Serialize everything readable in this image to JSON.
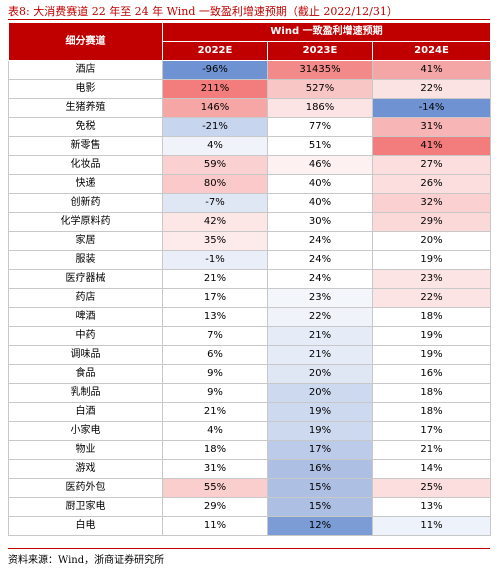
{
  "title": "表8:  大消费赛道 22 年至 24 年 Wind 一致盈利增速预期（截止 2022/12/31）",
  "table": {
    "header": {
      "first": "细分赛道",
      "group": "Wind 一致盈利增速预期",
      "years": [
        "2022E",
        "2023E",
        "2024E"
      ]
    },
    "rows": [
      {
        "label": "酒店",
        "values": [
          "-96%",
          "31435%",
          "41%"
        ],
        "colors": [
          "#6f93d2",
          "#f38a8a",
          "#f4a5a5"
        ]
      },
      {
        "label": "电影",
        "values": [
          "211%",
          "527%",
          "22%"
        ],
        "colors": [
          "#f37c7c",
          "#f9c6c6",
          "#fbe3e3"
        ]
      },
      {
        "label": "生猪养殖",
        "values": [
          "146%",
          "186%",
          "-14%"
        ],
        "colors": [
          "#f7a6a6",
          "#fde4e4",
          "#6f93d2"
        ]
      },
      {
        "label": "免税",
        "values": [
          "-21%",
          "77%",
          "31%"
        ],
        "colors": [
          "#c8d5ee",
          "#ffffff",
          "#f7b5b5"
        ]
      },
      {
        "label": "新零售",
        "values": [
          "4%",
          "51%",
          "41%"
        ],
        "colors": [
          "#f0f3fa",
          "#ffffff",
          "#f37c7c"
        ]
      },
      {
        "label": "化妆品",
        "values": [
          "59%",
          "46%",
          "27%"
        ],
        "colors": [
          "#fbd0d0",
          "#fdf1f1",
          "#fcdede"
        ]
      },
      {
        "label": "快递",
        "values": [
          "80%",
          "40%",
          "26%"
        ],
        "colors": [
          "#fbc9c9",
          "#ffffff",
          "#fcdede"
        ]
      },
      {
        "label": "创新药",
        "values": [
          "-7%",
          "40%",
          "32%"
        ],
        "colors": [
          "#dfe6f4",
          "#ffffff",
          "#fbd0d0"
        ]
      },
      {
        "label": "化学原料药",
        "values": [
          "42%",
          "30%",
          "29%"
        ],
        "colors": [
          "#fde6e6",
          "#ffffff",
          "#fcd9d9"
        ]
      },
      {
        "label": "家居",
        "values": [
          "35%",
          "24%",
          "20%"
        ],
        "colors": [
          "#fdeaea",
          "#ffffff",
          "#ffffff"
        ]
      },
      {
        "label": "服装",
        "values": [
          "-1%",
          "24%",
          "19%"
        ],
        "colors": [
          "#e9eef8",
          "#ffffff",
          "#ffffff"
        ]
      },
      {
        "label": "医疗器械",
        "values": [
          "21%",
          "24%",
          "23%"
        ],
        "colors": [
          "#ffffff",
          "#ffffff",
          "#fde4e4"
        ]
      },
      {
        "label": "药店",
        "values": [
          "17%",
          "23%",
          "22%"
        ],
        "colors": [
          "#ffffff",
          "#f3f6fb",
          "#fde4e4"
        ]
      },
      {
        "label": "啤酒",
        "values": [
          "13%",
          "22%",
          "18%"
        ],
        "colors": [
          "#ffffff",
          "#f0f3fa",
          "#ffffff"
        ]
      },
      {
        "label": "中药",
        "values": [
          "7%",
          "21%",
          "19%"
        ],
        "colors": [
          "#ffffff",
          "#e6ecf7",
          "#ffffff"
        ]
      },
      {
        "label": "调味品",
        "values": [
          "6%",
          "21%",
          "19%"
        ],
        "colors": [
          "#ffffff",
          "#e6ecf7",
          "#ffffff"
        ]
      },
      {
        "label": "食品",
        "values": [
          "9%",
          "20%",
          "16%"
        ],
        "colors": [
          "#ffffff",
          "#dfe6f4",
          "#ffffff"
        ]
      },
      {
        "label": "乳制品",
        "values": [
          "9%",
          "20%",
          "18%"
        ],
        "colors": [
          "#ffffff",
          "#cdd9ef",
          "#ffffff"
        ]
      },
      {
        "label": "白酒",
        "values": [
          "21%",
          "19%",
          "18%"
        ],
        "colors": [
          "#ffffff",
          "#cdd9ef",
          "#ffffff"
        ]
      },
      {
        "label": "小家电",
        "values": [
          "4%",
          "19%",
          "17%"
        ],
        "colors": [
          "#ffffff",
          "#cdd9ef",
          "#ffffff"
        ]
      },
      {
        "label": "物业",
        "values": [
          "18%",
          "17%",
          "21%"
        ],
        "colors": [
          "#ffffff",
          "#bccbea",
          "#ffffff"
        ]
      },
      {
        "label": "游戏",
        "values": [
          "31%",
          "16%",
          "14%"
        ],
        "colors": [
          "#ffffff",
          "#aebfe4",
          "#ffffff"
        ]
      },
      {
        "label": "医药外包",
        "values": [
          "55%",
          "15%",
          "25%"
        ],
        "colors": [
          "#fbcece",
          "#aebfe4",
          "#fcdede"
        ]
      },
      {
        "label": "厨卫家电",
        "values": [
          "29%",
          "15%",
          "13%"
        ],
        "colors": [
          "#ffffff",
          "#aebfe4",
          "#ffffff"
        ]
      },
      {
        "label": "白电",
        "values": [
          "11%",
          "12%",
          "11%"
        ],
        "colors": [
          "#ffffff",
          "#7c9cd6",
          "#eef2fa"
        ]
      }
    ]
  },
  "source": "资料来源：Wind，浙商证券研究所"
}
